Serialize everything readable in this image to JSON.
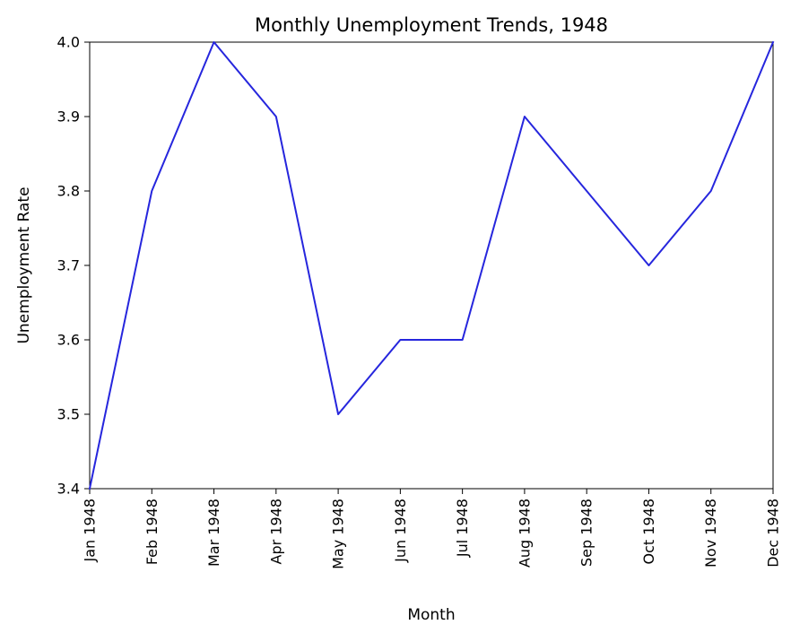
{
  "chart_data": {
    "type": "line",
    "title": "Monthly Unemployment Trends, 1948",
    "xlabel": "Month",
    "ylabel": "Unemployment Rate",
    "categories": [
      "Jan 1948",
      "Feb 1948",
      "Mar 1948",
      "Apr 1948",
      "May 1948",
      "Jun 1948",
      "Jul 1948",
      "Aug 1948",
      "Sep 1948",
      "Oct 1948",
      "Nov 1948",
      "Dec 1948"
    ],
    "values": [
      3.4,
      3.8,
      4.0,
      3.9,
      3.5,
      3.6,
      3.6,
      3.9,
      3.8,
      3.7,
      3.8,
      4.0
    ],
    "ylim": [
      3.4,
      4.0
    ],
    "yticks": [
      3.4,
      3.5,
      3.6,
      3.7,
      3.8,
      3.9,
      4.0
    ],
    "ytick_labels": [
      "3.4",
      "3.5",
      "3.6",
      "3.7",
      "3.8",
      "3.9",
      "4.0"
    ],
    "grid": false,
    "legend_position": "none",
    "line_color": "#2626dd",
    "axis_color": "#000000",
    "text_color": "#000000"
  }
}
